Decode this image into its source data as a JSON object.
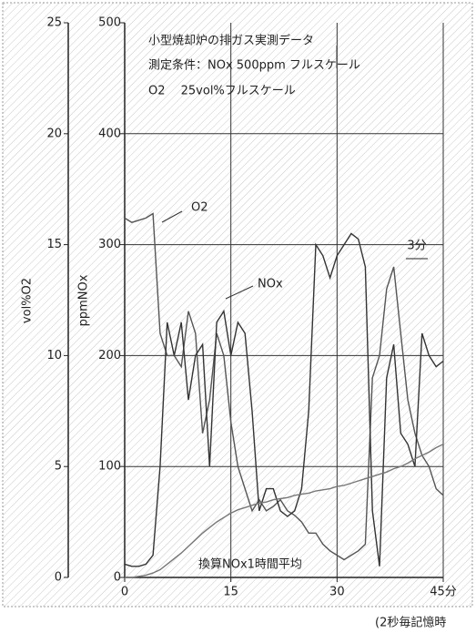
{
  "chart_data": {
    "type": "line",
    "annotations": [
      "小型焼却炉の排ガス実測データ",
      "測定条件：NOx 500ppm フルスケール",
      "O2　 25vol%フルスケール",
      "O2",
      "NOx",
      "換算NOx1時間平均",
      "3分",
      "(2秒毎記憶時"
    ],
    "ylabel": "ppmNOx",
    "y2label": "vol%O2",
    "x": [
      0,
      1,
      2,
      3,
      4,
      5,
      6,
      7,
      8,
      9,
      10,
      11,
      12,
      13,
      14,
      15,
      16,
      17,
      18,
      19,
      20,
      21,
      22,
      23,
      24,
      25,
      26,
      27,
      28,
      29,
      30,
      31,
      32,
      33,
      34,
      35,
      36,
      37,
      38,
      39,
      40,
      41,
      42,
      43,
      44,
      45
    ],
    "xlim": [
      0,
      45
    ],
    "xticks": [
      0,
      15,
      30,
      {
        "value": 45,
        "label": "45分"
      }
    ],
    "ylim": [
      0,
      500
    ],
    "yticks": [
      0,
      100,
      200,
      300,
      400,
      500
    ],
    "y2lim": [
      0,
      25
    ],
    "y2ticks": [
      0,
      5,
      10,
      15,
      20,
      25
    ],
    "grid": true,
    "series": [
      {
        "name": "O2",
        "axis": "y2",
        "color": "#555555",
        "values": [
          16.2,
          16.0,
          16.1,
          16.2,
          16.4,
          11,
          10,
          10,
          9.5,
          12,
          11,
          6.5,
          8,
          11,
          10,
          7,
          5,
          4,
          3,
          3.5,
          3,
          3.2,
          3.5,
          3,
          2.8,
          2.5,
          2,
          2,
          1.5,
          1.2,
          1,
          0.8,
          1,
          1.2,
          1.5,
          9,
          10,
          13,
          14,
          11,
          8,
          6.5,
          5.5,
          5,
          4,
          3.7
        ]
      },
      {
        "name": "NOx",
        "color": "#333333",
        "values": [
          12,
          10,
          10,
          12,
          20,
          100,
          230,
          200,
          230,
          160,
          200,
          210,
          100,
          230,
          240,
          200,
          230,
          220,
          150,
          60,
          80,
          80,
          60,
          55,
          60,
          80,
          150,
          300,
          290,
          270,
          290,
          300,
          310,
          305,
          280,
          60,
          10,
          180,
          210,
          130,
          120,
          100,
          220,
          200,
          190,
          195
        ]
      },
      {
        "name": "換算NOx1時間平均",
        "color": "#777777",
        "values": [
          0,
          0,
          1,
          2,
          4,
          7,
          12,
          17,
          22,
          28,
          34,
          40,
          45,
          50,
          54,
          58,
          61,
          63,
          65,
          67,
          68,
          70,
          71,
          72,
          74,
          75,
          76,
          78,
          79,
          80,
          82,
          83,
          85,
          87,
          89,
          91,
          93,
          95,
          98,
          100,
          103,
          107,
          110,
          113,
          117,
          120
        ]
      }
    ]
  }
}
